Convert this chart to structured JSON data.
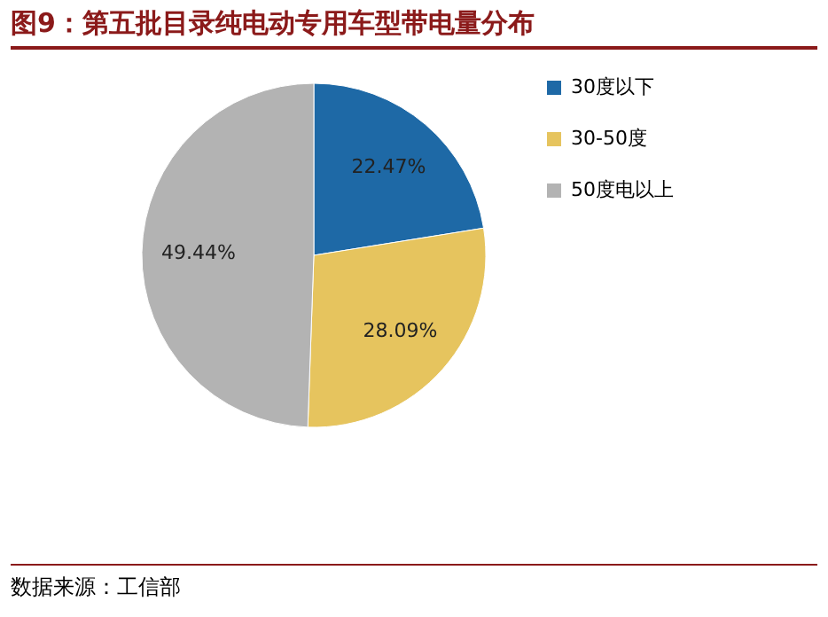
{
  "chart_data": {
    "type": "pie",
    "title": "图9：第五批目录纯电动专用车型带电量分布",
    "categories": [
      "30度以下",
      "30-50度",
      "50度电以上"
    ],
    "values": [
      22.47,
      28.09,
      49.44
    ],
    "colors": [
      "#1e69a6",
      "#e6c45e",
      "#b3b3b3"
    ],
    "value_labels": [
      "22.47%",
      "28.09%",
      "49.44%"
    ],
    "legend": "right",
    "annotations": [
      "数据来源：工信部"
    ]
  }
}
